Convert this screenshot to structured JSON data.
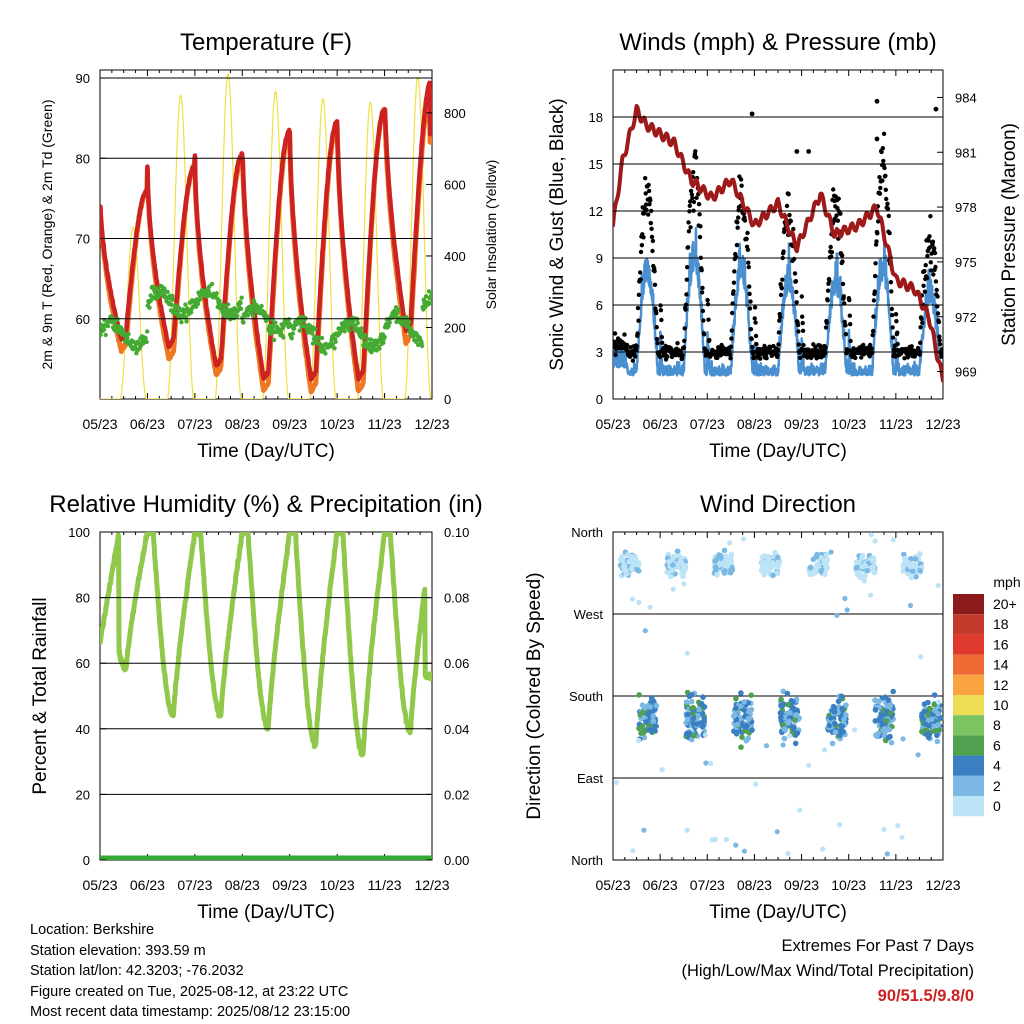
{
  "x_ticks": [
    "05/23",
    "06/23",
    "07/23",
    "08/23",
    "09/23",
    "10/23",
    "11/23",
    "12/23"
  ],
  "x_label": "Time (Day/UTC)",
  "colors": {
    "t9m": "#cc2222",
    "t2m": "#ee7722",
    "td": "#44aa33",
    "solar": "#f0e040",
    "gust": "#000000",
    "wind": "#4a90d0",
    "pressure": "#9e1a1a",
    "rh": "#8fc84a",
    "precip": "#33aa33",
    "extremes": "#cc2222"
  },
  "chart_data": [
    {
      "type": "line",
      "title": "Temperature (F)",
      "ylabel": "2m & 9m T (Red, Orange) & 2m Td (Green)",
      "y2label": "Solar Insolation (Yellow)",
      "ylim": [
        50,
        91
      ],
      "yticks": [
        60,
        70,
        80,
        90
      ],
      "y2lim": [
        0,
        920
      ],
      "y2ticks": [
        0,
        200,
        400,
        600,
        800
      ],
      "series": [
        {
          "key": "t9m",
          "lows": [
            57.5,
            56.5,
            54,
            52.5,
            52.5,
            52.5,
            58.5
          ],
          "highs": [
            76,
            79,
            80.5,
            83.5,
            84.5,
            86,
            90
          ],
          "start": 74,
          "end": 83
        },
        {
          "key": "t2m",
          "lows": [
            56,
            55,
            53,
            51,
            51,
            51,
            57
          ],
          "highs": [
            76,
            79,
            80,
            83,
            84,
            86,
            89
          ],
          "start": 73,
          "end": 82
        },
        {
          "key": "td",
          "base": [
            58,
            62,
            62,
            60,
            58,
            58,
            59
          ],
          "start": 60,
          "end": 64
        },
        {
          "key": "solar",
          "peaks": [
            480,
            850,
            910,
            860,
            840,
            830,
            900
          ]
        }
      ]
    },
    {
      "type": "line",
      "title": "Winds (mph) & Pressure (mb)",
      "ylabel": "Sonic Wind & Gust (Blue, Black)",
      "y2label": "Station Pressure (Maroon)",
      "ylim": [
        0,
        21
      ],
      "yticks": [
        0,
        3,
        6,
        9,
        12,
        15,
        18
      ],
      "y2lim": [
        967.5,
        985.5
      ],
      "y2ticks": [
        969,
        972,
        975,
        978,
        981,
        984
      ],
      "wind_peaks": [
        8,
        9,
        8,
        7,
        7,
        8,
        6
      ],
      "gust_peaks": [
        12.5,
        14,
        13,
        11,
        12,
        15,
        9
      ],
      "pressure": [
        [
          0,
          977
        ],
        [
          0.2,
          980.5
        ],
        [
          0.5,
          983.3
        ],
        [
          0.7,
          982.5
        ],
        [
          1.0,
          982.0
        ],
        [
          1.3,
          981.5
        ],
        [
          1.65,
          979.5
        ],
        [
          2.1,
          978.5
        ],
        [
          2.5,
          979.5
        ],
        [
          3.0,
          977.0
        ],
        [
          3.5,
          978.2
        ],
        [
          3.9,
          975.8
        ],
        [
          4.4,
          978.7
        ],
        [
          4.7,
          976.5
        ],
        [
          5.2,
          977.0
        ],
        [
          5.6,
          978.0
        ],
        [
          6.0,
          974.0
        ],
        [
          6.4,
          973.5
        ],
        [
          6.7,
          972.0
        ],
        [
          7.0,
          968.5
        ]
      ]
    },
    {
      "type": "line",
      "title": "Relative Humidity (%) & Precipitation (in)",
      "ylabel": "Percent & Total Rainfall",
      "ylim": [
        0,
        100
      ],
      "yticks": [
        0,
        20,
        40,
        60,
        80,
        100
      ],
      "y2lim": [
        0,
        0.1
      ],
      "y2ticks": [
        "0.00",
        "0.02",
        "0.04",
        "0.06",
        "0.08",
        "0.10"
      ],
      "rh_start": 66,
      "rh_lows": [
        58,
        44,
        44,
        40,
        35,
        32,
        39
      ],
      "rh_end": 56,
      "precip": 0
    },
    {
      "type": "scatter",
      "title": "Wind Direction",
      "ylabel": "Direction (Colored By Speed)",
      "yticks": [
        "North",
        "East",
        "South",
        "West",
        "North"
      ],
      "legend_title": "mph",
      "legend_labels": [
        "20+",
        "18",
        "16",
        "14",
        "12",
        "10",
        "8",
        "6",
        "4",
        "2",
        "0"
      ],
      "legend_colors": [
        "#8b1a1a",
        "#c0392b",
        "#e03a2f",
        "#f06a35",
        "#f9a441",
        "#eedd55",
        "#7cc461",
        "#4fa04f",
        "#3a7fc1",
        "#7bb8e3",
        "#bde3f7"
      ]
    }
  ],
  "info": {
    "location": "Location: Berkshire",
    "elevation": "Station elevation: 393.59 m",
    "latlon": "Station lat/lon: 42.3203; -76.2032",
    "created": "Figure created on Tue, 2025-08-12, at 23:22 UTC",
    "recent": "Most recent data timestamp: 2025/08/12 23:15:00"
  },
  "extremes": {
    "line1": "Extremes For Past 7 Days",
    "line2": "(High/Low/Max Wind/Total Precipitation)",
    "value": "90/51.5/9.8/0"
  }
}
